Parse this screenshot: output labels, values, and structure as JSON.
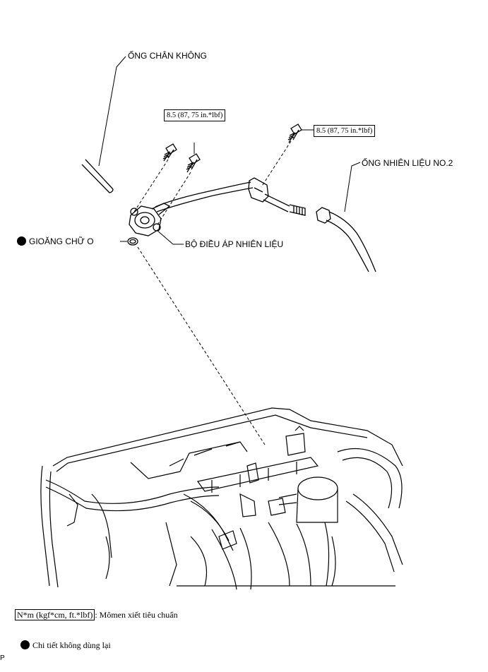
{
  "labels": {
    "vacuum_hose": "ỐNG CHÂN KHÔNG",
    "fuel_pipe_no2": "ỐNG NHIÊN LIỆU NO.2",
    "o_ring": "GIOĂNG CHỮ O",
    "pressure_regulator": "BỘ ĐIỀU ÁP NHIÊN LIỆU"
  },
  "torque_specs": [
    {
      "text": "8.5 (87, 75 in.*lbf)"
    },
    {
      "text": "8.5 (87, 75 in.*lbf)"
    }
  ],
  "legend": {
    "torque_unit_box": "N*m (kgf*cm, ft.*lbf)",
    "torque_unit_desc": ": Mômen xiết tiêu chuẩn",
    "non_reusable": "Chi tiết không dùng lại"
  },
  "footer": {
    "code": "P"
  }
}
